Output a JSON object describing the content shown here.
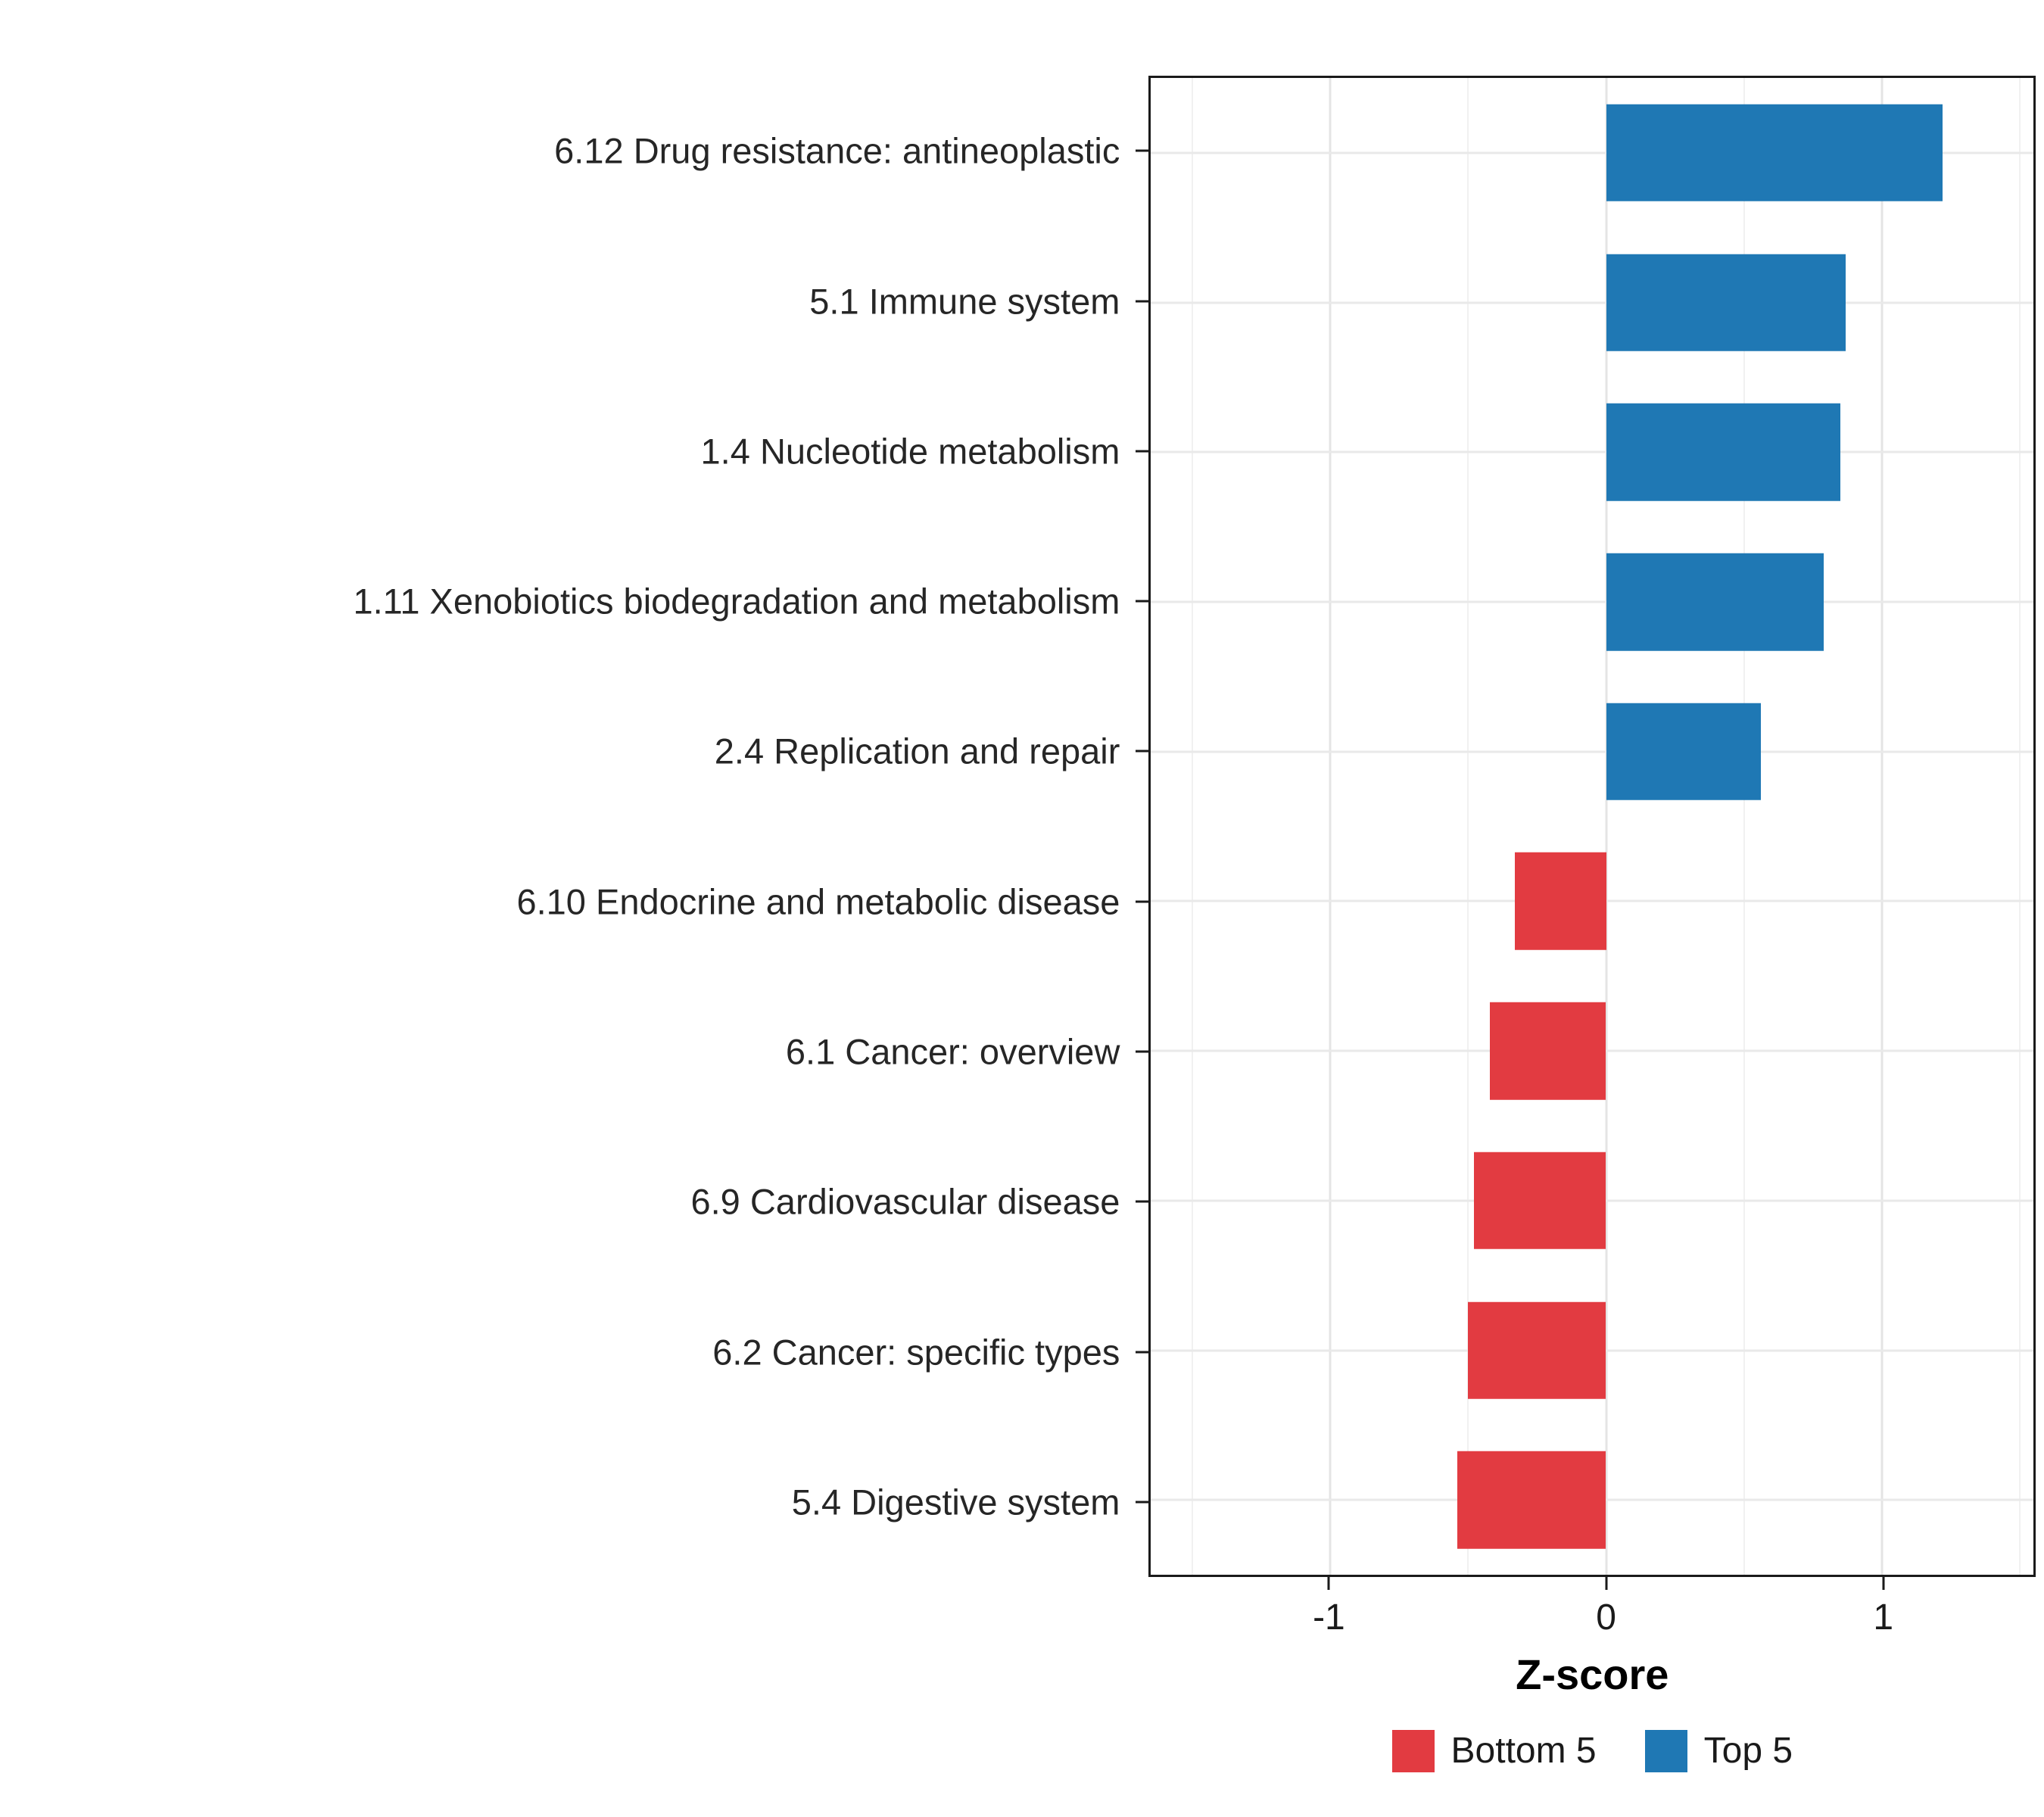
{
  "chart_data": {
    "type": "bar",
    "orientation": "horizontal",
    "title": "",
    "xlabel": "Z-score",
    "ylabel": "",
    "categories": [
      "6.12 Drug resistance: antineoplastic",
      "5.1 Immune system",
      "1.4 Nucleotide metabolism",
      "1.11 Xenobiotics biodegradation and metabolism",
      "2.4 Replication and repair",
      "6.10 Endocrine and metabolic disease",
      "6.1 Cancer: overview",
      "6.9 Cardiovascular disease",
      "6.2 Cancer: specific types",
      "5.4 Digestive system"
    ],
    "values": [
      1.22,
      0.87,
      0.85,
      0.79,
      0.56,
      -0.33,
      -0.42,
      -0.48,
      -0.5,
      -0.54
    ],
    "groups": [
      "Top 5",
      "Top 5",
      "Top 5",
      "Top 5",
      "Top 5",
      "Bottom 5",
      "Bottom 5",
      "Bottom 5",
      "Bottom 5",
      "Bottom 5"
    ],
    "colors": {
      "Top 5": "#1F78B4",
      "Bottom 5": "#E23B41"
    },
    "xlim": [
      -1.65,
      1.55
    ],
    "xticks": [
      -1,
      0,
      1
    ],
    "xtick_labels": [
      "-1",
      "0",
      "1"
    ],
    "xticks_minor": [
      -1.5,
      -0.5,
      0.5,
      1.5
    ],
    "grid": true,
    "bar_thickness_fraction": 0.65,
    "legend_position": "bottom",
    "legend": [
      {
        "label": "Bottom 5",
        "color": "#E23B41"
      },
      {
        "label": "Top 5",
        "color": "#1F78B4"
      }
    ]
  }
}
